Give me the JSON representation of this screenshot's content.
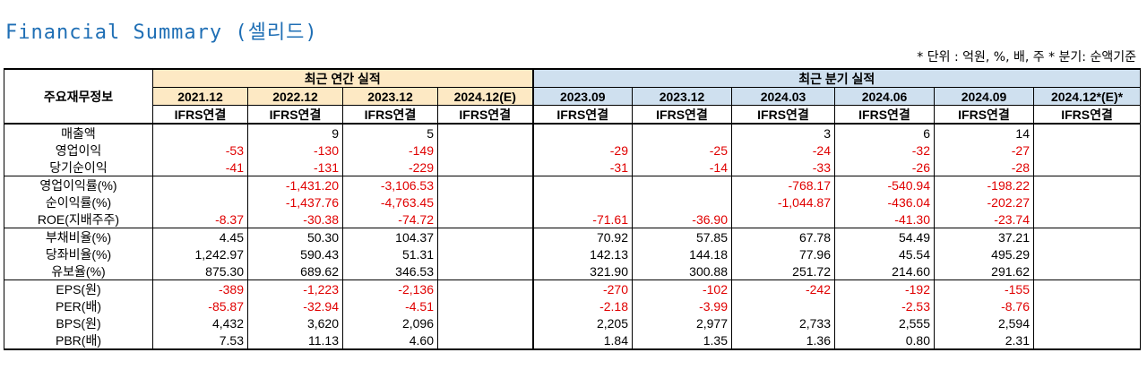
{
  "title": "Financial Summary (셀리드)",
  "units_note": "* 단위 : 억원, %, 배, 주    * 분기: 순액기준",
  "colors": {
    "title": "#1f6fb5",
    "annual_bg": "#fde9c4",
    "quarter_bg": "#cfe0ef",
    "negative": "#e00000"
  },
  "table": {
    "corner_label": "주요재무정보",
    "annual_header": "최근 연간 실적",
    "quarter_header": "최근 분기 실적",
    "annual_periods": [
      "2021.12",
      "2022.12",
      "2023.12",
      "2024.12(E)"
    ],
    "quarter_periods": [
      "2023.09",
      "2023.12",
      "2024.03",
      "2024.06",
      "2024.09",
      "2024.12*(E)*"
    ],
    "basis": [
      "IFRS연결",
      "IFRS연결",
      "IFRS연결",
      "IFRS연결",
      "IFRS연결",
      "IFRS연결",
      "IFRS연결",
      "IFRS연결",
      "IFRS연결",
      "IFRS연결"
    ],
    "rows": [
      {
        "label": "매출액",
        "group_start": true,
        "values": [
          "",
          "9",
          "5",
          "",
          "",
          "",
          "3",
          "6",
          "14",
          ""
        ]
      },
      {
        "label": "영업이익",
        "values": [
          "-53",
          "-130",
          "-149",
          "",
          "-29",
          "-25",
          "-24",
          "-32",
          "-27",
          ""
        ]
      },
      {
        "label": "당기순이익",
        "values": [
          "-41",
          "-131",
          "-229",
          "",
          "-31",
          "-14",
          "-33",
          "-26",
          "-28",
          ""
        ]
      },
      {
        "label": "영업이익률(%)",
        "group_start": true,
        "values": [
          "",
          "-1,431.20",
          "-3,106.53",
          "",
          "",
          "",
          "-768.17",
          "-540.94",
          "-198.22",
          ""
        ]
      },
      {
        "label": "순이익률(%)",
        "values": [
          "",
          "-1,437.76",
          "-4,763.45",
          "",
          "",
          "",
          "-1,044.87",
          "-436.04",
          "-202.27",
          ""
        ]
      },
      {
        "label": "ROE(지배주주)",
        "values": [
          "-8.37",
          "-30.38",
          "-74.72",
          "",
          "-71.61",
          "-36.90",
          "",
          "-41.30",
          "-23.74",
          ""
        ]
      },
      {
        "label": "부채비율(%)",
        "group_start": true,
        "values": [
          "4.45",
          "50.30",
          "104.37",
          "",
          "70.92",
          "57.85",
          "67.78",
          "54.49",
          "37.21",
          ""
        ]
      },
      {
        "label": "당좌비율(%)",
        "values": [
          "1,242.97",
          "590.43",
          "51.31",
          "",
          "142.13",
          "144.18",
          "77.96",
          "45.54",
          "495.29",
          ""
        ]
      },
      {
        "label": "유보율(%)",
        "values": [
          "875.30",
          "689.62",
          "346.53",
          "",
          "321.90",
          "300.88",
          "251.72",
          "214.60",
          "291.62",
          ""
        ]
      },
      {
        "label": "EPS(원)",
        "group_start": true,
        "values": [
          "-389",
          "-1,223",
          "-2,136",
          "",
          "-270",
          "-102",
          "-242",
          "-192",
          "-155",
          ""
        ]
      },
      {
        "label": "PER(배)",
        "values": [
          "-85.87",
          "-32.94",
          "-4.51",
          "",
          "-2.18",
          "-3.99",
          "",
          "-2.53",
          "-8.76",
          ""
        ]
      },
      {
        "label": "BPS(원)",
        "values": [
          "4,432",
          "3,620",
          "2,096",
          "",
          "2,205",
          "2,977",
          "2,733",
          "2,555",
          "2,594",
          ""
        ]
      },
      {
        "label": "PBR(배)",
        "values": [
          "7.53",
          "11.13",
          "4.60",
          "",
          "1.84",
          "1.35",
          "1.36",
          "0.80",
          "2.31",
          ""
        ]
      }
    ]
  }
}
